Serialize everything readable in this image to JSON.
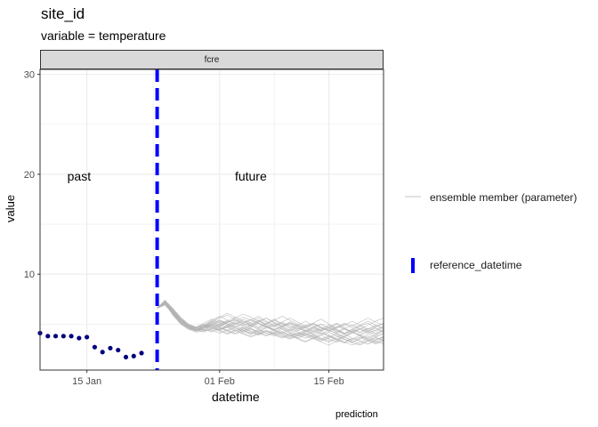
{
  "title": "site_id",
  "subtitle": "variable = temperature",
  "caption": "prediction",
  "colors": {
    "observations": "#00007f",
    "reference": "#0000ff",
    "ensemble": "#b3b3b3",
    "grid": "#ebebeb",
    "strip": "#d9d9d9"
  },
  "chart_data": {
    "type": "line",
    "facet_label": "fcre",
    "xlabel": "datetime",
    "ylabel": "value",
    "x_type": "date",
    "xlim": [
      "2024-01-09",
      "2024-02-22"
    ],
    "ylim": [
      0.4,
      30.5
    ],
    "x_ticks": [
      {
        "date": "2024-01-15",
        "label": "15 Jan"
      },
      {
        "date": "2024-02-01",
        "label": "01 Feb"
      },
      {
        "date": "2024-02-15",
        "label": "15 Feb"
      }
    ],
    "y_ticks": [
      10,
      20,
      30
    ],
    "grid": true,
    "annotations": [
      {
        "text": "past",
        "date": "2024-01-14",
        "y": 19.8
      },
      {
        "text": "future",
        "date": "2024-02-05",
        "y": 19.8
      }
    ],
    "reference_datetime": "2024-01-24",
    "observations": [
      {
        "date": "2024-01-09",
        "value": 4.1
      },
      {
        "date": "2024-01-10",
        "value": 3.8
      },
      {
        "date": "2024-01-11",
        "value": 3.8
      },
      {
        "date": "2024-01-12",
        "value": 3.8
      },
      {
        "date": "2024-01-13",
        "value": 3.8
      },
      {
        "date": "2024-01-14",
        "value": 3.6
      },
      {
        "date": "2024-01-15",
        "value": 3.7
      },
      {
        "date": "2024-01-16",
        "value": 2.7
      },
      {
        "date": "2024-01-17",
        "value": 2.2
      },
      {
        "date": "2024-01-18",
        "value": 2.6
      },
      {
        "date": "2024-01-19",
        "value": 2.4
      },
      {
        "date": "2024-01-20",
        "value": 1.7
      },
      {
        "date": "2024-01-21",
        "value": 1.8
      },
      {
        "date": "2024-01-22",
        "value": 2.1
      }
    ],
    "ensemble": {
      "start_date": "2024-01-24",
      "end_date": "2024-02-22",
      "members": [
        [
          6.6,
          7.2,
          6.0,
          5.1,
          4.6,
          4.4,
          4.8,
          5.0,
          4.7,
          5.2,
          5.4,
          5.0,
          4.9,
          5.3,
          5.6,
          5.1,
          4.7,
          4.3,
          4.8,
          4.6,
          4.2,
          4.5,
          4.9,
          4.4,
          4.0,
          4.3,
          4.8,
          5.1,
          4.6,
          4.2
        ],
        [
          6.6,
          7.0,
          6.3,
          5.4,
          4.7,
          4.5,
          4.4,
          4.9,
          5.3,
          5.0,
          4.6,
          4.3,
          4.7,
          5.1,
          4.8,
          4.4,
          4.1,
          4.5,
          4.2,
          3.9,
          4.3,
          4.7,
          4.4,
          4.0,
          3.7,
          4.1,
          4.5,
          4.2,
          3.8,
          4.0
        ],
        [
          6.6,
          7.3,
          6.5,
          5.6,
          4.9,
          4.5,
          4.6,
          5.2,
          5.6,
          5.9,
          5.5,
          5.1,
          5.4,
          5.8,
          5.3,
          4.9,
          5.2,
          5.6,
          5.2,
          4.8,
          5.1,
          5.5,
          5.0,
          4.6,
          4.9,
          5.3,
          4.9,
          4.5,
          4.8,
          5.0
        ],
        [
          6.6,
          7.1,
          5.9,
          5.0,
          4.5,
          4.2,
          4.3,
          4.6,
          4.4,
          4.1,
          4.4,
          4.0,
          3.7,
          4.0,
          4.3,
          3.9,
          3.6,
          3.9,
          3.5,
          3.2,
          3.6,
          3.9,
          3.5,
          3.2,
          3.5,
          3.1,
          2.9,
          3.3,
          3.6,
          3.4
        ],
        [
          6.6,
          7.4,
          6.6,
          5.7,
          5.0,
          4.6,
          4.8,
          5.1,
          5.4,
          5.1,
          5.6,
          6.0,
          5.7,
          5.3,
          5.0,
          5.4,
          5.8,
          5.4,
          5.0,
          4.7,
          5.0,
          4.6,
          4.3,
          4.7,
          5.1,
          4.8,
          5.2,
          5.6,
          5.2,
          4.9
        ],
        [
          6.6,
          7.2,
          6.2,
          5.3,
          4.8,
          4.7,
          5.0,
          4.7,
          4.4,
          4.8,
          5.2,
          4.9,
          4.5,
          4.2,
          4.6,
          4.9,
          4.5,
          4.1,
          3.8,
          4.2,
          4.5,
          4.1,
          3.8,
          3.4,
          3.8,
          4.2,
          3.9,
          3.6,
          3.9,
          4.3
        ],
        [
          6.6,
          6.9,
          6.1,
          5.2,
          4.6,
          4.3,
          4.5,
          4.3,
          4.7,
          4.4,
          4.1,
          4.5,
          4.8,
          4.5,
          4.1,
          4.4,
          4.0,
          3.7,
          4.1,
          4.4,
          4.0,
          3.6,
          3.3,
          3.7,
          4.0,
          3.6,
          3.3,
          3.0,
          3.4,
          3.7
        ],
        [
          6.6,
          7.3,
          6.4,
          5.5,
          4.8,
          4.4,
          4.7,
          5.3,
          4.9,
          4.6,
          5.0,
          5.5,
          5.1,
          4.7,
          5.1,
          5.5,
          5.0,
          4.6,
          4.9,
          5.3,
          4.8,
          4.4,
          4.7,
          5.1,
          4.6,
          4.2,
          4.5,
          4.9,
          5.3,
          5.6
        ],
        [
          6.6,
          7.0,
          6.0,
          5.1,
          4.5,
          4.4,
          4.6,
          4.9,
          4.6,
          4.3,
          4.0,
          4.3,
          4.6,
          4.2,
          3.9,
          4.2,
          4.6,
          4.2,
          3.9,
          3.6,
          3.9,
          4.3,
          3.9,
          3.5,
          3.8,
          4.2,
          3.8,
          3.4,
          3.7,
          4.1
        ],
        [
          6.6,
          7.2,
          6.3,
          5.4,
          4.9,
          4.6,
          4.9,
          5.4,
          5.8,
          5.4,
          5.0,
          4.6,
          4.9,
          5.3,
          4.9,
          4.5,
          4.8,
          4.4,
          4.0,
          4.3,
          4.7,
          4.3,
          4.6,
          5.0,
          4.6,
          4.2,
          3.9,
          4.3,
          4.6,
          4.2
        ],
        [
          6.6,
          7.1,
          6.1,
          5.3,
          4.7,
          4.5,
          4.3,
          4.5,
          4.9,
          5.2,
          4.8,
          4.4,
          4.1,
          4.5,
          4.8,
          4.4,
          4.1,
          3.8,
          4.1,
          3.8,
          3.5,
          3.9,
          4.2,
          3.8,
          3.5,
          3.2,
          3.6,
          4.0,
          3.7,
          3.3
        ],
        [
          6.6,
          7.3,
          6.5,
          5.5,
          4.9,
          4.6,
          4.8,
          4.6,
          5.0,
          5.3,
          5.7,
          5.3,
          4.9,
          5.2,
          5.6,
          5.2,
          4.8,
          5.1,
          4.7,
          4.3,
          4.7,
          5.0,
          4.6,
          4.2,
          4.6,
          4.9,
          4.5,
          4.1,
          4.4,
          4.8
        ],
        [
          6.6,
          7.0,
          6.2,
          5.2,
          4.6,
          4.3,
          4.6,
          4.9,
          4.5,
          4.9,
          4.6,
          4.2,
          4.5,
          4.1,
          3.8,
          4.1,
          4.5,
          4.1,
          3.8,
          4.1,
          3.7,
          3.4,
          3.7,
          4.1,
          3.7,
          3.4,
          3.7,
          3.3,
          3.0,
          3.3
        ],
        [
          6.6,
          7.2,
          6.3,
          5.4,
          4.7,
          4.4,
          4.6,
          5.0,
          5.4,
          5.0,
          4.7,
          5.1,
          5.5,
          5.1,
          4.7,
          4.4,
          4.8,
          5.2,
          4.8,
          4.4,
          4.1,
          4.5,
          4.9,
          4.5,
          4.1,
          4.5,
          4.8,
          4.4,
          4.1,
          4.5
        ],
        [
          6.6,
          7.1,
          6.2,
          5.3,
          4.8,
          4.5,
          4.7,
          4.4,
          4.1,
          4.4,
          4.8,
          4.4,
          4.0,
          4.3,
          4.7,
          4.3,
          3.9,
          3.6,
          3.9,
          4.3,
          3.9,
          3.5,
          3.8,
          3.4,
          3.1,
          3.5,
          3.9,
          3.5,
          3.2,
          3.6
        ],
        [
          6.6,
          7.3,
          6.4,
          5.5,
          4.9,
          4.7,
          5.1,
          5.5,
          5.1,
          4.7,
          5.1,
          4.8,
          5.2,
          5.6,
          5.2,
          4.8,
          5.2,
          4.8,
          4.4,
          4.8,
          5.1,
          4.7,
          4.3,
          4.6,
          5.0,
          4.6,
          4.9,
          5.3,
          4.9,
          4.5
        ],
        [
          6.6,
          7.0,
          6.1,
          5.2,
          4.6,
          4.4,
          4.2,
          4.6,
          4.3,
          4.0,
          4.3,
          4.7,
          4.3,
          4.0,
          4.3,
          4.0,
          3.7,
          4.0,
          3.6,
          3.3,
          3.6,
          3.2,
          2.9,
          3.3,
          3.7,
          3.3,
          3.0,
          3.4,
          3.1,
          3.4
        ],
        [
          6.6,
          7.2,
          6.2,
          5.4,
          4.8,
          4.5,
          4.8,
          5.2,
          4.8,
          5.2,
          5.5,
          5.1,
          4.8,
          5.1,
          4.7,
          4.4,
          4.7,
          5.0,
          4.6,
          4.3,
          4.6,
          5.0,
          4.6,
          4.3,
          4.0,
          4.4,
          4.1,
          4.5,
          4.9,
          4.6
        ],
        [
          6.6,
          7.1,
          6.0,
          5.1,
          4.6,
          4.3,
          4.5,
          4.2,
          4.5,
          4.8,
          4.4,
          4.1,
          3.8,
          4.1,
          4.4,
          4.1,
          3.8,
          3.5,
          3.8,
          4.1,
          3.8,
          3.5,
          3.2,
          3.5,
          3.2,
          2.9,
          3.2,
          3.6,
          3.3,
          3.0
        ],
        [
          6.6,
          7.3,
          6.5,
          5.6,
          5.0,
          4.7,
          4.9,
          5.3,
          5.7,
          6.1,
          5.7,
          5.3,
          5.0,
          5.4,
          5.0,
          4.7,
          5.1,
          4.8,
          4.5,
          4.9,
          4.6,
          4.3,
          4.7,
          4.4,
          4.1,
          4.5,
          4.2,
          4.6,
          4.3,
          4.7
        ],
        [
          6.6,
          7.0,
          6.2,
          5.3,
          4.7,
          4.4,
          4.6,
          4.8,
          4.4,
          4.7,
          4.3,
          4.6,
          4.2,
          3.9,
          4.3,
          4.0,
          4.3,
          3.9,
          3.6,
          3.9,
          3.6,
          3.3,
          3.6,
          3.9,
          3.5,
          3.2,
          3.5,
          3.8,
          3.4,
          3.7
        ],
        [
          6.6,
          7.2,
          6.3,
          5.4,
          4.8,
          4.6,
          4.9,
          4.6,
          5.0,
          5.4,
          5.0,
          5.3,
          4.9,
          4.6,
          5.0,
          5.4,
          5.0,
          4.6,
          4.3,
          4.7,
          4.3,
          4.0,
          4.4,
          4.1,
          4.5,
          4.2,
          3.9,
          4.3,
          4.0,
          4.4
        ],
        [
          6.6,
          7.1,
          6.1,
          5.2,
          4.6,
          4.4,
          4.7,
          5.0,
          4.7,
          4.3,
          4.6,
          4.3,
          4.0,
          4.4,
          4.1,
          3.8,
          4.2,
          3.9,
          3.6,
          4.0,
          3.7,
          4.1,
          3.8,
          3.5,
          3.2,
          3.6,
          3.3,
          3.0,
          3.4,
          3.8
        ],
        [
          6.6,
          7.3,
          6.4,
          5.5,
          4.9,
          4.6,
          4.4,
          4.8,
          5.2,
          4.9,
          5.3,
          5.7,
          5.4,
          5.0,
          4.7,
          5.1,
          4.8,
          5.2,
          4.9,
          4.6,
          5.0,
          4.7,
          4.4,
          4.8,
          4.5,
          4.2,
          4.6,
          4.3,
          4.7,
          5.1
        ]
      ]
    },
    "legend": {
      "position": "right",
      "entries": [
        {
          "label": "ensemble member (parameter)",
          "type": "line"
        },
        {
          "label": "reference_datetime",
          "type": "dashed-vline"
        }
      ]
    }
  }
}
